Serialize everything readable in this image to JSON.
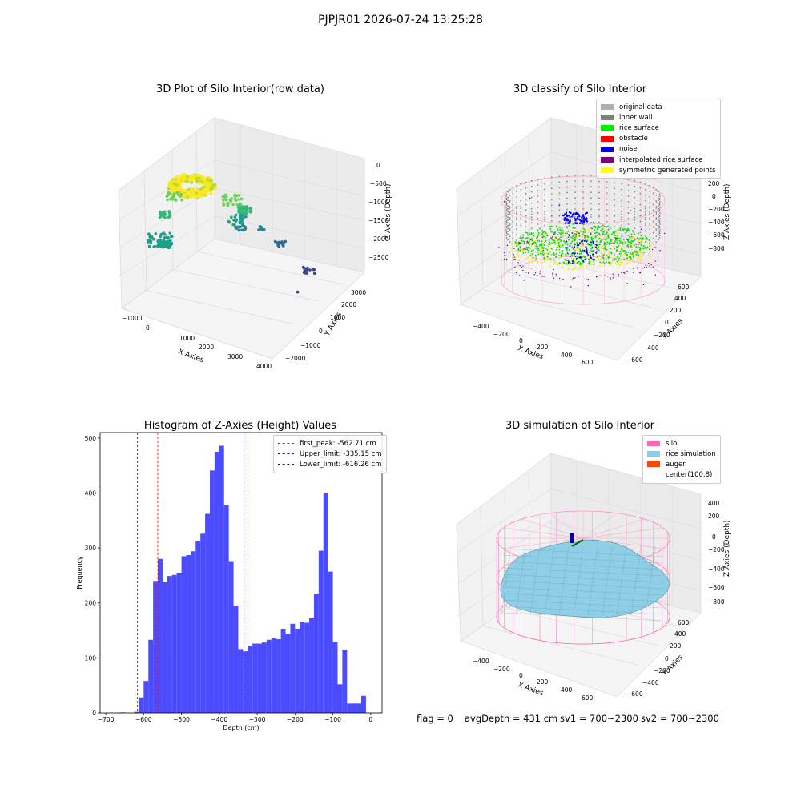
{
  "figure": {
    "suptitle": "PJPJR01 2026-07-24 13:25:28"
  },
  "chart_data": [
    {
      "type": "scatter",
      "projection": "3d",
      "title": "3D Plot of Silo Interior(row data)",
      "xlabel": "X Axies",
      "ylabel": "Y Axies",
      "zlabel": "Z Axies (Depth)",
      "x_ticks": [
        "−1000",
        "0",
        "1000",
        "2000",
        "3000",
        "4000"
      ],
      "y_ticks": [
        "−2000",
        "−1000",
        "0",
        "1000",
        "2000",
        "3000"
      ],
      "z_ticks": [
        "0",
        "−500",
        "−1000",
        "−1500",
        "−2000",
        "−2500"
      ],
      "colormap": "viridis"
    },
    {
      "type": "scatter",
      "projection": "3d",
      "title": "3D classify of Silo Interior",
      "xlabel": "X Axies",
      "ylabel": "Y Axies",
      "zlabel": "Z Axies (Depth)",
      "x_ticks": [
        "−400",
        "−200",
        "0",
        "200",
        "400",
        "600"
      ],
      "y_ticks": [
        "−600",
        "−400",
        "−200",
        "0",
        "200",
        "400",
        "600"
      ],
      "z_ticks": [
        "200",
        "0",
        "−200",
        "−400",
        "−600",
        "−800"
      ],
      "legend_position": "top-right",
      "legend": [
        {
          "label": "original data",
          "color": "#b0b0b0"
        },
        {
          "label": "inner wall",
          "color": "#808080"
        },
        {
          "label": "rice surface",
          "color": "#00ee00"
        },
        {
          "label": "obstacle",
          "color": "#ff0000"
        },
        {
          "label": "noise",
          "color": "#0000ee"
        },
        {
          "label": "interpolated rice surface",
          "color": "#800080"
        },
        {
          "label": "symmetric generated points",
          "color": "#ffff00"
        }
      ]
    },
    {
      "type": "bar",
      "title": "Histogram of Z-Axies (Height) Values",
      "xlabel": "Depth (cm)",
      "ylabel": "Frequency",
      "xlim": [
        -715,
        30
      ],
      "ylim": [
        0,
        510
      ],
      "x_ticks": [
        -700,
        -600,
        -500,
        -400,
        -300,
        -200,
        -100,
        0
      ],
      "y_ticks": [
        0,
        100,
        200,
        300,
        400,
        500
      ],
      "bin_width": 12.5,
      "bar_color": "#4b4bff",
      "bins": [
        {
          "x": -662.5,
          "value": 1
        },
        {
          "x": -625,
          "value": 2
        },
        {
          "x": -612.5,
          "value": 28
        },
        {
          "x": -600,
          "value": 58
        },
        {
          "x": -587.5,
          "value": 133
        },
        {
          "x": -575,
          "value": 240
        },
        {
          "x": -562.5,
          "value": 280
        },
        {
          "x": -550,
          "value": 238
        },
        {
          "x": -537.5,
          "value": 249
        },
        {
          "x": -525,
          "value": 251
        },
        {
          "x": -512.5,
          "value": 255
        },
        {
          "x": -500,
          "value": 285
        },
        {
          "x": -487.5,
          "value": 287
        },
        {
          "x": -475,
          "value": 294
        },
        {
          "x": -462.5,
          "value": 312
        },
        {
          "x": -450,
          "value": 326
        },
        {
          "x": -437.5,
          "value": 362
        },
        {
          "x": -425,
          "value": 441
        },
        {
          "x": -412.5,
          "value": 475
        },
        {
          "x": -400,
          "value": 486
        },
        {
          "x": -387.5,
          "value": 378
        },
        {
          "x": -375,
          "value": 276
        },
        {
          "x": -362.5,
          "value": 195
        },
        {
          "x": -350,
          "value": 116
        },
        {
          "x": -337.5,
          "value": 112
        },
        {
          "x": -325,
          "value": 122
        },
        {
          "x": -312.5,
          "value": 126
        },
        {
          "x": -300,
          "value": 126
        },
        {
          "x": -287.5,
          "value": 128
        },
        {
          "x": -275,
          "value": 133
        },
        {
          "x": -262.5,
          "value": 136
        },
        {
          "x": -250,
          "value": 134
        },
        {
          "x": -237.5,
          "value": 153
        },
        {
          "x": -225,
          "value": 143
        },
        {
          "x": -212.5,
          "value": 162
        },
        {
          "x": -200,
          "value": 153
        },
        {
          "x": -187.5,
          "value": 166
        },
        {
          "x": -175,
          "value": 164
        },
        {
          "x": -162.5,
          "value": 172
        },
        {
          "x": -150,
          "value": 217
        },
        {
          "x": -137.5,
          "value": 295
        },
        {
          "x": -125,
          "value": 400
        },
        {
          "x": -112.5,
          "value": 257
        },
        {
          "x": -100,
          "value": 129
        },
        {
          "x": -87.5,
          "value": 52
        },
        {
          "x": -75,
          "value": 115
        },
        {
          "x": -62.5,
          "value": 17
        },
        {
          "x": -50,
          "value": 17
        },
        {
          "x": -37.5,
          "value": 17
        },
        {
          "x": -25,
          "value": 31
        }
      ],
      "vlines": [
        {
          "x": -562.71,
          "label": "first_peak: -562.71 cm",
          "color": "#ff0000"
        },
        {
          "x": -335.15,
          "label": "Upper_limit: -335.15 cm",
          "color": "#0000cc"
        },
        {
          "x": -616.26,
          "label": "Lower_limit: -616.26 cm",
          "color": "#0000cc"
        }
      ],
      "legend_position": "top-right"
    },
    {
      "type": "surface",
      "projection": "3d",
      "title": "3D simulation of Silo Interior",
      "xlabel": "X Axies",
      "ylabel": "Y Axies",
      "zlabel": "Z Axies (Depth)",
      "x_ticks": [
        "−400",
        "−200",
        "0",
        "200",
        "400",
        "600"
      ],
      "y_ticks": [
        "−600",
        "−400",
        "−200",
        "0",
        "200",
        "400",
        "600"
      ],
      "z_ticks": [
        "400",
        "200",
        "0",
        "−200",
        "−400",
        "−600",
        "−800"
      ],
      "legend_position": "top-right",
      "legend": [
        {
          "label": "silo",
          "color": "#ff69b4"
        },
        {
          "label": "rice simulation",
          "color": "#87ceeb"
        },
        {
          "label": "auger",
          "color": "#ff4500"
        },
        {
          "label": "center(100,8)",
          "color": "#ffffff"
        }
      ]
    }
  ],
  "status": {
    "flag": "flag = 0",
    "avg_depth": "avgDepth = 431 cm",
    "sv1": "sv1 = 700~2300",
    "sv2": "sv2 = 700~2300"
  }
}
